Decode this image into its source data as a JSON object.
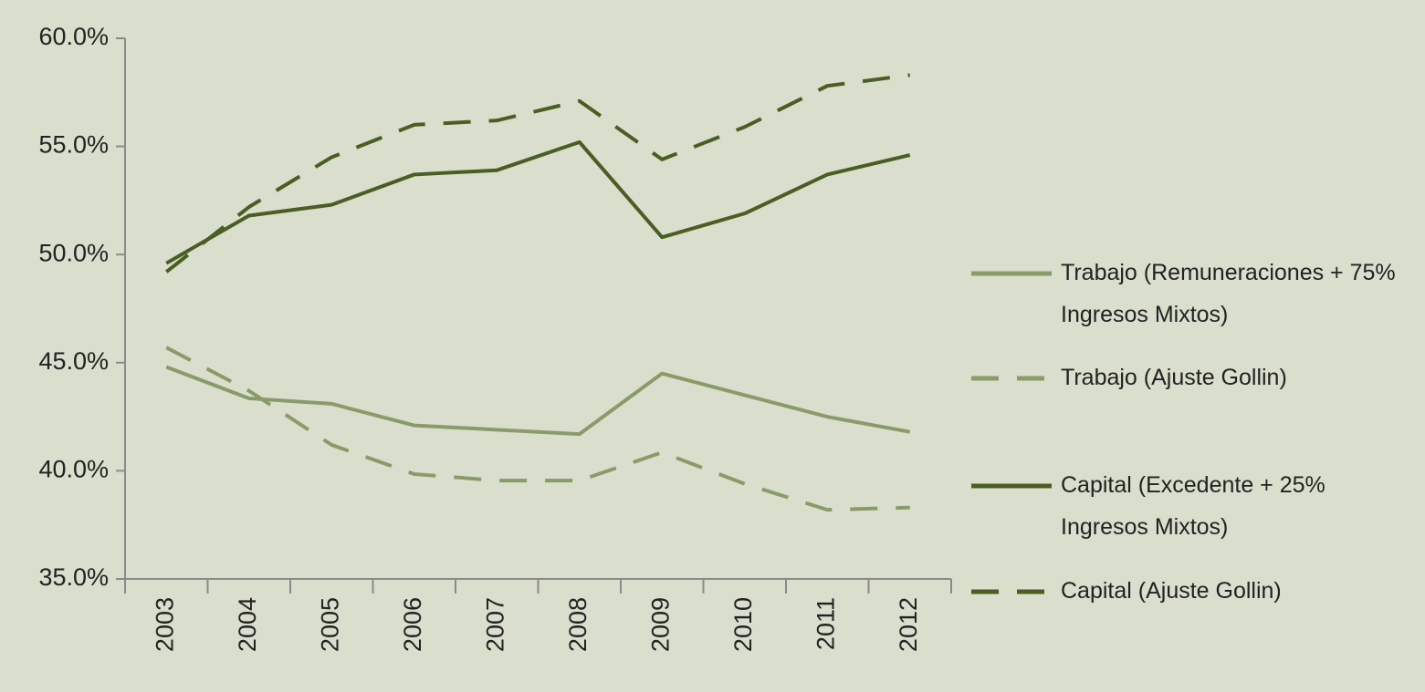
{
  "chart_data": {
    "type": "line",
    "categories": [
      "2003",
      "2004",
      "2005",
      "2006",
      "2007",
      "2008",
      "2009",
      "2010",
      "2011",
      "2012"
    ],
    "series": [
      {
        "name": "Trabajo (Remuneraciones + 75% Ingresos Mixtos)",
        "color": "#8a9b6a",
        "dashed": false,
        "values": [
          44.8,
          43.35,
          43.1,
          42.1,
          41.9,
          41.7,
          44.5,
          43.5,
          42.5,
          41.8
        ]
      },
      {
        "name": "Trabajo (Ajuste Gollin)",
        "color": "#8a9b6a",
        "dashed": true,
        "values": [
          45.7,
          43.7,
          41.2,
          39.85,
          39.55,
          39.55,
          40.85,
          39.4,
          38.2,
          38.3
        ]
      },
      {
        "name": "Capital (Excedente + 25% Ingresos Mixtos)",
        "color": "#4a5e24",
        "dashed": false,
        "values": [
          49.6,
          51.8,
          52.3,
          53.7,
          53.9,
          55.2,
          50.8,
          51.9,
          53.7,
          54.6
        ]
      },
      {
        "name": "Capital (Ajuste Gollin)",
        "color": "#4a5e24",
        "dashed": true,
        "values": [
          49.2,
          52.2,
          54.5,
          56.0,
          56.2,
          57.1,
          54.4,
          55.9,
          57.8,
          58.3
        ]
      }
    ],
    "ylim": [
      35,
      60
    ],
    "yticks": [
      {
        "value": 35,
        "label": "35.0%"
      },
      {
        "value": 40,
        "label": "40.0%"
      },
      {
        "value": 45,
        "label": "45.0%"
      },
      {
        "value": 50,
        "label": "50.0%"
      },
      {
        "value": 55,
        "label": "55.0%"
      },
      {
        "value": 60,
        "label": "60.0%"
      }
    ],
    "grid": false,
    "legend": "right"
  }
}
